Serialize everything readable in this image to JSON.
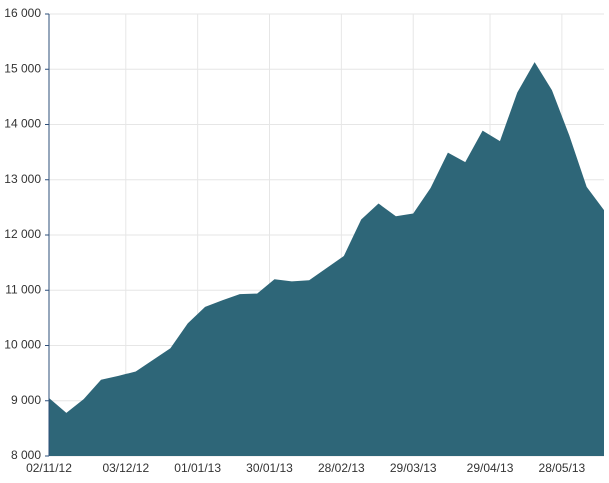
{
  "chart_data": {
    "type": "area",
    "color": "#2e6678",
    "grid": true,
    "x": [
      "2012-11-02",
      "2012-11-09",
      "2012-11-16",
      "2012-11-23",
      "2012-11-30",
      "2012-12-07",
      "2012-12-14",
      "2012-12-21",
      "2012-12-28",
      "2013-01-04",
      "2013-01-11",
      "2013-01-18",
      "2013-01-25",
      "2013-02-01",
      "2013-02-08",
      "2013-02-15",
      "2013-02-22",
      "2013-03-01",
      "2013-03-08",
      "2013-03-15",
      "2013-03-22",
      "2013-03-29",
      "2013-04-05",
      "2013-04-12",
      "2013-04-19",
      "2013-04-26",
      "2013-05-03",
      "2013-05-10",
      "2013-05-17",
      "2013-05-24",
      "2013-05-31",
      "2013-06-07",
      "2013-06-14"
    ],
    "values": [
      9050,
      8780,
      9030,
      9380,
      9450,
      9530,
      9740,
      9950,
      10400,
      10700,
      10820,
      10930,
      10940,
      11200,
      11160,
      11180,
      11400,
      11620,
      12280,
      12570,
      12340,
      12390,
      12850,
      13490,
      13320,
      13890,
      13700,
      14580,
      15130,
      14620,
      13800,
      12870,
      12450
    ],
    "xlim": [
      "2012-11-02",
      "2013-06-14"
    ],
    "xticks": [
      {
        "value": "2012-11-02",
        "label": "02/11/12"
      },
      {
        "value": "2012-12-03",
        "label": "03/12/12"
      },
      {
        "value": "2013-01-01",
        "label": "01/01/13"
      },
      {
        "value": "2013-01-30",
        "label": "30/01/13"
      },
      {
        "value": "2013-02-28",
        "label": "28/02/13"
      },
      {
        "value": "2013-03-29",
        "label": "29/03/13"
      },
      {
        "value": "2013-04-29",
        "label": "29/04/13"
      },
      {
        "value": "2013-05-28",
        "label": "28/05/13"
      }
    ],
    "ylim": [
      8000,
      16000
    ],
    "yticks": [
      {
        "value": 8000,
        "label": "8 000"
      },
      {
        "value": 9000,
        "label": "9 000"
      },
      {
        "value": 10000,
        "label": "10 000"
      },
      {
        "value": 11000,
        "label": "11 000"
      },
      {
        "value": 12000,
        "label": "12 000"
      },
      {
        "value": 13000,
        "label": "13 000"
      },
      {
        "value": 14000,
        "label": "14 000"
      },
      {
        "value": 15000,
        "label": "15 000"
      },
      {
        "value": 16000,
        "label": "16 000"
      }
    ]
  }
}
